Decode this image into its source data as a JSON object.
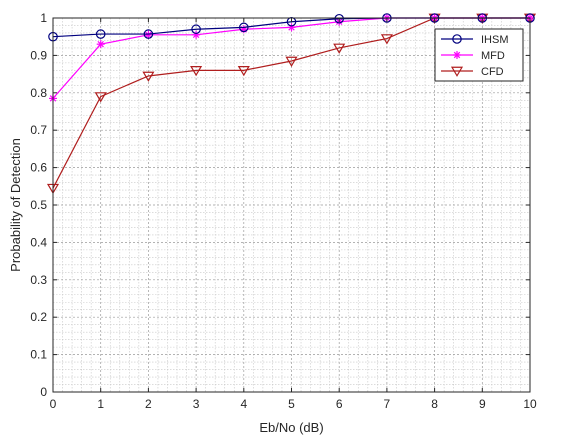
{
  "chart_data": {
    "type": "line",
    "title": "",
    "xlabel": "Eb/No (dB)",
    "ylabel": "Probability of Detection",
    "xlim": [
      0,
      10
    ],
    "ylim": [
      0,
      1
    ],
    "x_ticks": [
      "0",
      "1",
      "2",
      "3",
      "4",
      "5",
      "6",
      "7",
      "8",
      "9",
      "10"
    ],
    "y_ticks": [
      "0",
      "0.1",
      "0.2",
      "0.3",
      "0.4",
      "0.5",
      "0.6",
      "0.7",
      "0.8",
      "0.9",
      "1"
    ],
    "grid": true,
    "minor_grid": true,
    "legend_position": "top-right",
    "x": [
      0,
      1,
      2,
      3,
      4,
      5,
      6,
      7,
      8,
      9,
      10
    ],
    "series": [
      {
        "name": "IHSM",
        "color": "#00007f",
        "marker": "circle",
        "values": [
          0.95,
          0.957,
          0.957,
          0.97,
          0.975,
          0.99,
          0.998,
          1.0,
          1.0,
          1.0,
          1.0
        ]
      },
      {
        "name": "MFD",
        "color": "#ff00ff",
        "marker": "asterisk",
        "values": [
          0.785,
          0.93,
          0.955,
          0.955,
          0.97,
          0.975,
          0.99,
          1.0,
          1.0,
          1.0,
          1.0
        ]
      },
      {
        "name": "CFD",
        "color": "#b01e1e",
        "marker": "triangle-down",
        "values": [
          0.545,
          0.79,
          0.845,
          0.86,
          0.86,
          0.885,
          0.92,
          0.945,
          1.0,
          1.0,
          1.0
        ]
      }
    ]
  }
}
